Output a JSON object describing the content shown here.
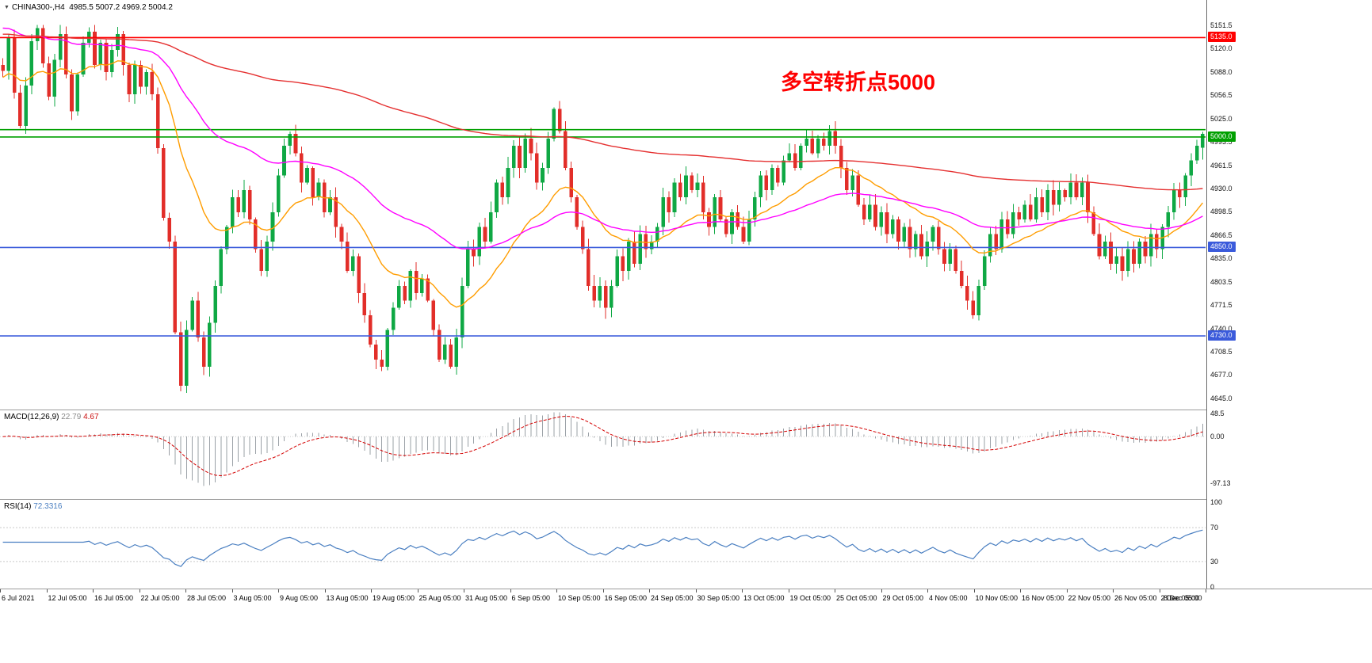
{
  "header": {
    "symbol_period": "CHINA300-,H4",
    "ohlc": "4985.5 5007.2 4969.2 5004.2"
  },
  "indicators": {
    "macd": {
      "name": "MACD(12,26,9)",
      "main_value": "22.79",
      "signal_value": "4.67"
    },
    "rsi": {
      "name": "RSI(14)",
      "value": "72.3316"
    }
  },
  "chart_data": [
    {
      "type": "candlestick",
      "symbol": "CHINA300-",
      "timeframe": "H4",
      "current_ohlc": {
        "open": 4985.5,
        "high": 5007.2,
        "low": 4969.2,
        "close": 5004.2
      },
      "y_range": [
        4630,
        5186
      ],
      "y_ticks": [
        "5151.5",
        "5120.0",
        "5088.0",
        "5056.5",
        "5025.0",
        "4993.5",
        "4961.5",
        "4930.0",
        "4898.5",
        "4866.5",
        "4835.0",
        "4803.5",
        "4771.5",
        "4740.0",
        "4708.5",
        "4677.0",
        "4645.0"
      ],
      "horizontal_levels": [
        {
          "value": 5135.0,
          "label": "5135.0",
          "color": "#ff0000",
          "tag": true
        },
        {
          "value": 5010.0,
          "label": "",
          "color": "#00a000",
          "tag": false
        },
        {
          "value": 5000.0,
          "label": "5000.0",
          "color": "#00a000",
          "tag": true
        },
        {
          "value": 4850.0,
          "label": "4850.0",
          "color": "#3b5bdb",
          "tag": true
        },
        {
          "value": 4730.0,
          "label": "4730.0",
          "color": "#3b5bdb",
          "tag": true
        }
      ],
      "moving_averages": [
        {
          "name": "ma-fast-orange",
          "period": 20,
          "start": 5080,
          "color": "#ff9d00"
        },
        {
          "name": "ma-mid-magenta",
          "period": 55,
          "start": 5150,
          "color": "#ff00ff"
        },
        {
          "name": "ma-slow-red",
          "period": 220,
          "start": 5140,
          "color": "#e53030"
        }
      ],
      "colors": {
        "up": "#0fa844",
        "down": "#e22e29"
      },
      "annotation": {
        "text": "多空转折点5000",
        "color": "#ff0000"
      },
      "closes": [
        5090,
        5135,
        5060,
        5015,
        5070,
        5130,
        5148,
        5100,
        5055,
        5105,
        5140,
        5085,
        5035,
        5085,
        5128,
        5143,
        5098,
        5128,
        5088,
        5118,
        5140,
        5098,
        5058,
        5098,
        5068,
        5088,
        5058,
        4985,
        4890,
        4858,
        4735,
        4662,
        4738,
        4778,
        4728,
        4688,
        4748,
        4798,
        4848,
        4878,
        4918,
        4898,
        4928,
        4888,
        4848,
        4818,
        4858,
        4898,
        4948,
        4988,
        5004,
        4978,
        4938,
        4958,
        4918,
        4938,
        4898,
        4918,
        4878,
        4858,
        4818,
        4838,
        4788,
        4758,
        4718,
        4698,
        4688,
        4738,
        4768,
        4798,
        4778,
        4818,
        4788,
        4808,
        4778,
        4738,
        4698,
        4718,
        4688,
        4728,
        4798,
        4848,
        4838,
        4878,
        4858,
        4898,
        4938,
        4918,
        4958,
        4988,
        4958,
        4998,
        4978,
        4938,
        4958,
        4998,
        5038,
        5008,
        4958,
        4918,
        4878,
        4848,
        4798,
        4778,
        4798,
        4768,
        4798,
        4838,
        4818,
        4858,
        4828,
        4868,
        4848,
        4858,
        4878,
        4918,
        4898,
        4938,
        4918,
        4948,
        4928,
        4938,
        4898,
        4878,
        4918,
        4888,
        4868,
        4898,
        4878,
        4858,
        4888,
        4918,
        4948,
        4928,
        4958,
        4938,
        4968,
        4978,
        4958,
        4988,
        4998,
        4978,
        4998,
        4988,
        5008,
        4988,
        4958,
        4928,
        4948,
        4908,
        4888,
        4908,
        4878,
        4898,
        4868,
        4888,
        4858,
        4878,
        4848,
        4868,
        4838,
        4858,
        4878,
        4848,
        4828,
        4848,
        4818,
        4798,
        4778,
        4758,
        4798,
        4838,
        4868,
        4848,
        4888,
        4868,
        4898,
        4888,
        4908,
        4888,
        4918,
        4898,
        4928,
        4908,
        4928,
        4918,
        4938,
        4918,
        4938,
        4898,
        4868,
        4838,
        4858,
        4828,
        4838,
        4818,
        4848,
        4828,
        4858,
        4838,
        4868,
        4848,
        4878,
        4898,
        4928,
        4918,
        4948,
        4968,
        4988,
        5004.2
      ],
      "x_labels": [
        "6 Jul 2021",
        "12 Jul 05:00",
        "16 Jul 05:00",
        "22 Jul 05:00",
        "28 Jul 05:00",
        "3 Aug 05:00",
        "9 Aug 05:00",
        "13 Aug 05:00",
        "19 Aug 05:00",
        "25 Aug 05:00",
        "31 Aug 05:00",
        "6 Sep 05:00",
        "10 Sep 05:00",
        "16 Sep 05:00",
        "24 Sep 05:00",
        "30 Sep 05:00",
        "13 Oct 05:00",
        "19 Oct 05:00",
        "25 Oct 05:00",
        "29 Oct 05:00",
        "4 Nov 05:00",
        "10 Nov 05:00",
        "16 Nov 05:00",
        "22 Nov 05:00",
        "26 Nov 05:00",
        "2 Dec 05:00",
        "8 Dec 05:00"
      ]
    },
    {
      "type": "macd",
      "label": "MACD(12,26,9) 22.79 4.67",
      "params": [
        12,
        26,
        9
      ],
      "y_range": [
        -128,
        53
      ],
      "y_ticks": [
        {
          "value": 48.5,
          "label": "48.5"
        },
        {
          "value": 0,
          "label": "0.00"
        },
        {
          "value": -97.13,
          "label": "-97.13"
        }
      ],
      "colors": {
        "histogram": "#9aa0a6",
        "signal": "#d40000"
      }
    },
    {
      "type": "rsi",
      "label": "RSI(14) 72.3316",
      "period": 14,
      "current": 72.3316,
      "y_range": [
        0,
        100
      ],
      "levels": [
        70,
        30
      ],
      "y_ticks": [
        {
          "value": 100,
          "label": "100"
        },
        {
          "value": 70,
          "label": "70"
        },
        {
          "value": 30,
          "label": "30"
        },
        {
          "value": 0,
          "label": "0"
        }
      ],
      "color": "#4a7fc1"
    }
  ]
}
